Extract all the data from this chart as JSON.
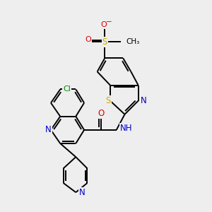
{
  "bg_color": "#eeeeee",
  "atom_colors": {
    "C": "#000000",
    "N": "#0000cc",
    "O": "#dd0000",
    "S": "#ccaa00",
    "Cl": "#008800",
    "H": "#777777"
  },
  "bond_color": "#000000",
  "lw": 1.4,
  "fs": 8.5
}
